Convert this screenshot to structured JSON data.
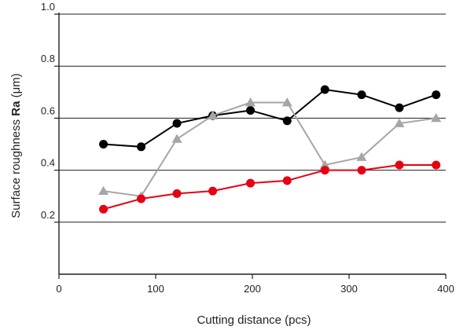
{
  "chart_data": {
    "type": "line",
    "title": "",
    "xlabel": "Cutting distance (pcs)",
    "ylabel": {
      "prefix": "Surface roughness ",
      "bold": "Ra",
      "suffix": " (μm)"
    },
    "xlim": [
      0,
      400
    ],
    "ylim": [
      0,
      1.0
    ],
    "xticks": [
      0,
      100,
      200,
      300,
      400
    ],
    "yticks": [
      0.2,
      0.4,
      0.6,
      0.8,
      1.0
    ],
    "ytick_labels": [
      "0.2",
      "0.4",
      "0.6",
      "0.8",
      "1.0"
    ],
    "grid": "horizontal",
    "legend": "none",
    "series": [
      {
        "color": "#000000",
        "marker": "circle",
        "x": [
          46,
          85,
          122,
          159,
          198,
          236,
          275,
          313,
          352,
          390
        ],
        "y": [
          0.5,
          0.49,
          0.58,
          0.61,
          0.63,
          0.59,
          0.71,
          0.69,
          0.64,
          0.69
        ]
      },
      {
        "color": "#a6a6a6",
        "marker": "triangle",
        "x": [
          46,
          85,
          122,
          159,
          198,
          236,
          275,
          313,
          352,
          390
        ],
        "y": [
          0.32,
          0.3,
          0.52,
          0.61,
          0.66,
          0.66,
          0.42,
          0.45,
          0.58,
          0.6
        ]
      },
      {
        "color": "#e60012",
        "marker": "circle",
        "x": [
          46,
          85,
          122,
          159,
          198,
          236,
          275,
          313,
          352,
          390
        ],
        "y": [
          0.25,
          0.29,
          0.31,
          0.32,
          0.35,
          0.36,
          0.4,
          0.4,
          0.42,
          0.42
        ]
      }
    ]
  }
}
